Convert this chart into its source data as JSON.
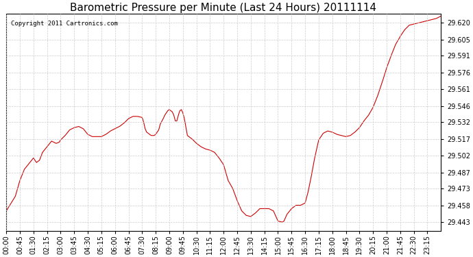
{
  "title": "Barometric Pressure per Minute (Last 24 Hours) 20111114",
  "copyright": "Copyright 2011 Cartronics.com",
  "line_color": "#cc0000",
  "background_color": "#ffffff",
  "grid_color": "#cccccc",
  "title_fontsize": 11,
  "tick_fontsize": 7,
  "yticks": [
    29.443,
    29.458,
    29.473,
    29.487,
    29.502,
    29.517,
    29.532,
    29.546,
    29.561,
    29.576,
    29.591,
    29.605,
    29.62
  ],
  "ylim": [
    29.435,
    29.628
  ],
  "xtick_labels": [
    "00:00",
    "00:45",
    "01:30",
    "02:15",
    "03:00",
    "03:45",
    "04:30",
    "05:15",
    "06:00",
    "06:45",
    "07:30",
    "08:15",
    "09:00",
    "09:45",
    "10:30",
    "11:15",
    "12:00",
    "12:45",
    "13:30",
    "14:15",
    "15:00",
    "15:45",
    "16:30",
    "17:15",
    "18:00",
    "18:45",
    "19:30",
    "20:15",
    "21:00",
    "21:45",
    "22:30",
    "23:15"
  ],
  "key_points": [
    [
      0,
      29.453
    ],
    [
      30,
      29.466
    ],
    [
      45,
      29.48
    ],
    [
      60,
      29.49
    ],
    [
      75,
      29.495
    ],
    [
      90,
      29.5
    ],
    [
      100,
      29.496
    ],
    [
      110,
      29.498
    ],
    [
      120,
      29.505
    ],
    [
      135,
      29.51
    ],
    [
      150,
      29.515
    ],
    [
      165,
      29.513
    ],
    [
      175,
      29.514
    ],
    [
      180,
      29.516
    ],
    [
      195,
      29.52
    ],
    [
      210,
      29.525
    ],
    [
      225,
      29.527
    ],
    [
      240,
      29.528
    ],
    [
      255,
      29.526
    ],
    [
      270,
      29.521
    ],
    [
      285,
      29.519
    ],
    [
      300,
      29.519
    ],
    [
      315,
      29.519
    ],
    [
      330,
      29.521
    ],
    [
      345,
      29.524
    ],
    [
      360,
      29.526
    ],
    [
      375,
      29.528
    ],
    [
      390,
      29.531
    ],
    [
      405,
      29.535
    ],
    [
      420,
      29.537
    ],
    [
      435,
      29.537
    ],
    [
      450,
      29.536
    ],
    [
      455,
      29.532
    ],
    [
      460,
      29.526
    ],
    [
      465,
      29.523
    ],
    [
      475,
      29.521
    ],
    [
      480,
      29.52
    ],
    [
      490,
      29.52
    ],
    [
      495,
      29.521
    ],
    [
      505,
      29.525
    ],
    [
      510,
      29.53
    ],
    [
      520,
      29.535
    ],
    [
      525,
      29.538
    ],
    [
      535,
      29.542
    ],
    [
      540,
      29.543
    ],
    [
      550,
      29.541
    ],
    [
      555,
      29.538
    ],
    [
      560,
      29.533
    ],
    [
      565,
      29.533
    ],
    [
      570,
      29.538
    ],
    [
      575,
      29.542
    ],
    [
      580,
      29.543
    ],
    [
      585,
      29.54
    ],
    [
      590,
      29.535
    ],
    [
      600,
      29.52
    ],
    [
      615,
      29.517
    ],
    [
      630,
      29.513
    ],
    [
      645,
      29.51
    ],
    [
      660,
      29.508
    ],
    [
      675,
      29.507
    ],
    [
      690,
      29.505
    ],
    [
      705,
      29.5
    ],
    [
      720,
      29.494
    ],
    [
      735,
      29.48
    ],
    [
      750,
      29.473
    ],
    [
      765,
      29.462
    ],
    [
      780,
      29.453
    ],
    [
      795,
      29.449
    ],
    [
      810,
      29.448
    ],
    [
      825,
      29.451
    ],
    [
      840,
      29.455
    ],
    [
      855,
      29.455
    ],
    [
      870,
      29.455
    ],
    [
      885,
      29.453
    ],
    [
      900,
      29.444
    ],
    [
      915,
      29.443
    ],
    [
      920,
      29.444
    ],
    [
      930,
      29.45
    ],
    [
      945,
      29.455
    ],
    [
      960,
      29.458
    ],
    [
      975,
      29.458
    ],
    [
      990,
      29.46
    ],
    [
      1000,
      29.47
    ],
    [
      1010,
      29.483
    ],
    [
      1020,
      29.498
    ],
    [
      1035,
      29.516
    ],
    [
      1050,
      29.522
    ],
    [
      1065,
      29.524
    ],
    [
      1080,
      29.523
    ],
    [
      1095,
      29.521
    ],
    [
      1110,
      29.52
    ],
    [
      1125,
      29.519
    ],
    [
      1140,
      29.52
    ],
    [
      1155,
      29.523
    ],
    [
      1170,
      29.527
    ],
    [
      1185,
      29.533
    ],
    [
      1200,
      29.538
    ],
    [
      1215,
      29.545
    ],
    [
      1230,
      29.555
    ],
    [
      1245,
      29.567
    ],
    [
      1260,
      29.58
    ],
    [
      1275,
      29.591
    ],
    [
      1290,
      29.601
    ],
    [
      1305,
      29.608
    ],
    [
      1320,
      29.614
    ],
    [
      1335,
      29.618
    ],
    [
      1350,
      29.619
    ],
    [
      1365,
      29.62
    ],
    [
      1380,
      29.621
    ],
    [
      1395,
      29.622
    ],
    [
      1410,
      29.623
    ],
    [
      1425,
      29.624
    ],
    [
      1439,
      29.626
    ]
  ]
}
